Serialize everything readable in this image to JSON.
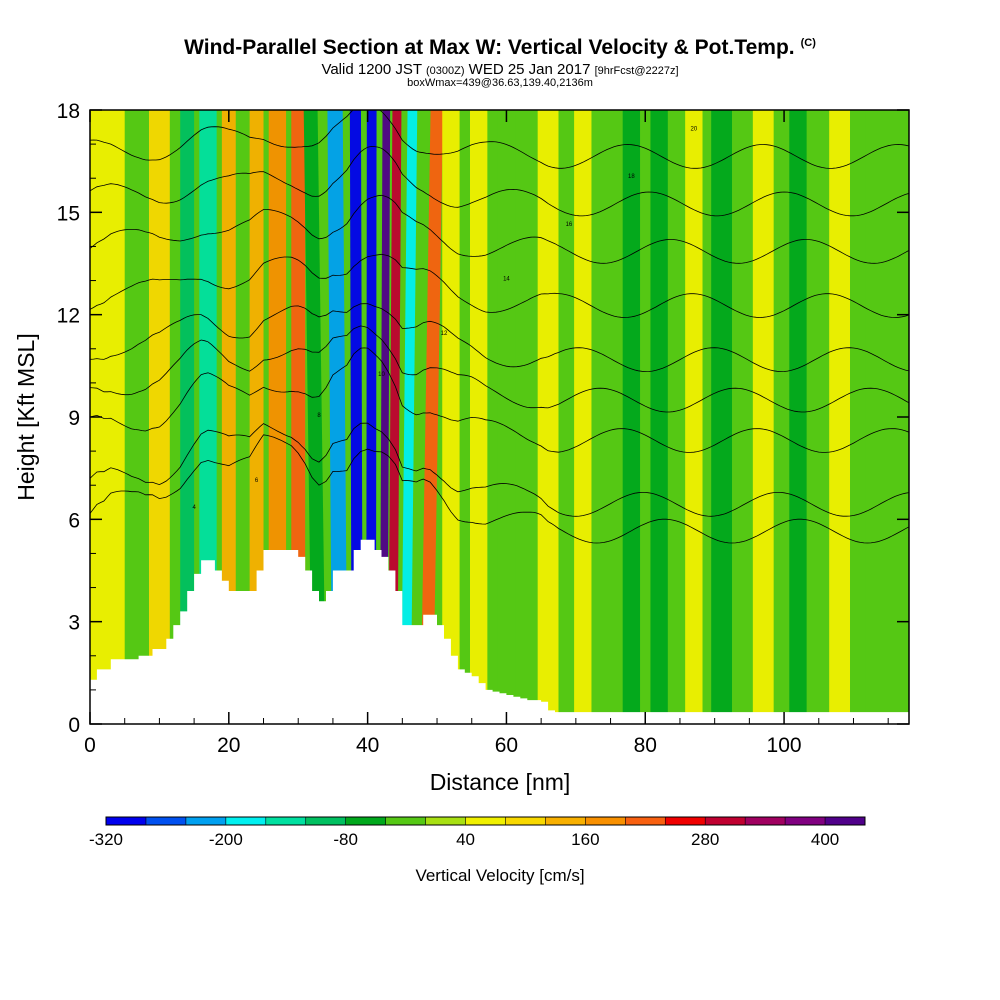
{
  "title": {
    "main": "Wind-Parallel Section at Max W: Vertical Velocity & Pot.Temp.",
    "copyright": "(C)",
    "valid_prefix": "Valid 1200 JST",
    "zulu": "(0300Z)",
    "valid_date": "WED 25 Jan 2017",
    "forecast": "[9hrFcst@2227z]",
    "box_info": "boxWmax=439@36.63,139.40,2136m"
  },
  "chart_data": {
    "type": "heatmap",
    "xlabel": "Distance [nm]",
    "ylabel": "Height [Kft MSL]",
    "xlim": [
      0,
      118
    ],
    "ylim": [
      0,
      18
    ],
    "xticks": [
      0,
      20,
      40,
      60,
      80,
      100
    ],
    "yticks": [
      0,
      3,
      6,
      9,
      12,
      15,
      18
    ],
    "colorbar": {
      "title": "Vertical Velocity [cm/s]",
      "tick_labels": [
        "-320",
        "-200",
        "-80",
        "40",
        "160",
        "280",
        "400"
      ],
      "tick_values": [
        -320,
        -200,
        -80,
        40,
        160,
        280,
        400
      ],
      "levels": [
        -320,
        -280,
        -240,
        -200,
        -160,
        -120,
        -80,
        -40,
        0,
        40,
        80,
        120,
        160,
        200,
        240,
        280,
        320,
        360,
        400,
        440
      ],
      "colors": [
        "#0000ee",
        "#0050f0",
        "#00a0f0",
        "#00f0f0",
        "#00e0a0",
        "#00c060",
        "#00a81c",
        "#55c814",
        "#a8e012",
        "#f0f000",
        "#f8d800",
        "#f8b000",
        "#f89000",
        "#f86010",
        "#f00000",
        "#c00030",
        "#a00060",
        "#800080",
        "#50008a"
      ]
    },
    "terrain_profile_kft": {
      "x": [
        0,
        1,
        2,
        3,
        4,
        5,
        6,
        7,
        8,
        9,
        10,
        11,
        12,
        13,
        14,
        15,
        16,
        17,
        18,
        19,
        20,
        21,
        22,
        23,
        24,
        25,
        26,
        27,
        28,
        29,
        30,
        31,
        32,
        33,
        34,
        35,
        36,
        37,
        38,
        39,
        40,
        41,
        42,
        43,
        44,
        45,
        46,
        47,
        48,
        49,
        50,
        51,
        52,
        53,
        54,
        55,
        56,
        57,
        58,
        59,
        60,
        61,
        62,
        63,
        64,
        65,
        66,
        67
      ],
      "height": [
        1.3,
        1.6,
        1.6,
        1.9,
        1.9,
        1.9,
        1.9,
        2.0,
        2.0,
        2.2,
        2.2,
        2.5,
        2.9,
        3.3,
        3.9,
        4.4,
        4.8,
        4.8,
        4.5,
        4.2,
        3.9,
        3.9,
        3.9,
        3.9,
        4.5,
        5.1,
        5.1,
        5.1,
        5.1,
        5.1,
        4.9,
        4.5,
        3.9,
        3.6,
        3.9,
        4.5,
        4.5,
        4.5,
        5.1,
        5.4,
        5.4,
        5.1,
        4.9,
        4.5,
        3.9,
        2.9,
        2.9,
        2.9,
        3.2,
        3.2,
        2.9,
        2.5,
        2.0,
        1.6,
        1.5,
        1.4,
        1.2,
        1.0,
        0.95,
        0.9,
        0.85,
        0.8,
        0.75,
        0.7,
        0.7,
        0.65,
        0.4,
        0.35
      ]
    },
    "velocity_features": [
      {
        "x": 2,
        "width": 6,
        "value": 40
      },
      {
        "x": 10,
        "width": 3,
        "value": 80
      },
      {
        "x": 14,
        "width": 2,
        "value": -120
      },
      {
        "x": 17,
        "width": 2.5,
        "value": -160
      },
      {
        "x": 20,
        "width": 2,
        "value": 120
      },
      {
        "x": 24,
        "width": 2,
        "value": 120
      },
      {
        "x": 27,
        "width": 2.5,
        "value": 160
      },
      {
        "x": 30,
        "width": 2,
        "value": 200
      },
      {
        "x": 33,
        "width": 2,
        "value": -80
      },
      {
        "x": 36,
        "width": 2.2,
        "value": -240
      },
      {
        "x": 38.5,
        "width": 1.6,
        "value": -320
      },
      {
        "x": 40.5,
        "width": 1.4,
        "value": -320
      },
      {
        "x": 42.3,
        "width": 1.1,
        "value": 400
      },
      {
        "x": 43.6,
        "width": 1.3,
        "value": 300
      },
      {
        "x": 45.5,
        "width": 1.4,
        "value": -200
      },
      {
        "x": 48.5,
        "width": 1.8,
        "value": 200
      },
      {
        "x": 52,
        "width": 2.5,
        "value": 40
      },
      {
        "x": 56,
        "width": 2.5,
        "value": 40
      },
      {
        "x": 60,
        "width": 2.5,
        "value": -40
      },
      {
        "x": 66,
        "width": 3,
        "value": 40
      },
      {
        "x": 71,
        "width": 2.5,
        "value": 40
      },
      {
        "x": 78,
        "width": 2.5,
        "value": -80
      },
      {
        "x": 82,
        "width": 2.5,
        "value": -80
      },
      {
        "x": 87,
        "width": 2.5,
        "value": 40
      },
      {
        "x": 91,
        "width": 3,
        "value": -80
      },
      {
        "x": 97,
        "width": 3,
        "value": 40
      },
      {
        "x": 102,
        "width": 2.5,
        "value": -80
      },
      {
        "x": 108,
        "width": 3,
        "value": 40
      },
      {
        "x": 113,
        "width": 2.5,
        "value": -40
      }
    ],
    "potential_temperature_contours": [
      {
        "label": "4",
        "base_height": 5.5
      },
      {
        "label": "6",
        "base_height": 6.3
      },
      {
        "label": "8",
        "base_height": 8.2
      },
      {
        "label": "10",
        "base_height": 9.4
      },
      {
        "label": "12",
        "base_height": 10.6
      },
      {
        "label": "14",
        "base_height": 12.2
      },
      {
        "label": "16",
        "base_height": 13.8
      },
      {
        "label": "18",
        "base_height": 15.2
      },
      {
        "label": "20",
        "base_height": 16.6
      }
    ]
  }
}
